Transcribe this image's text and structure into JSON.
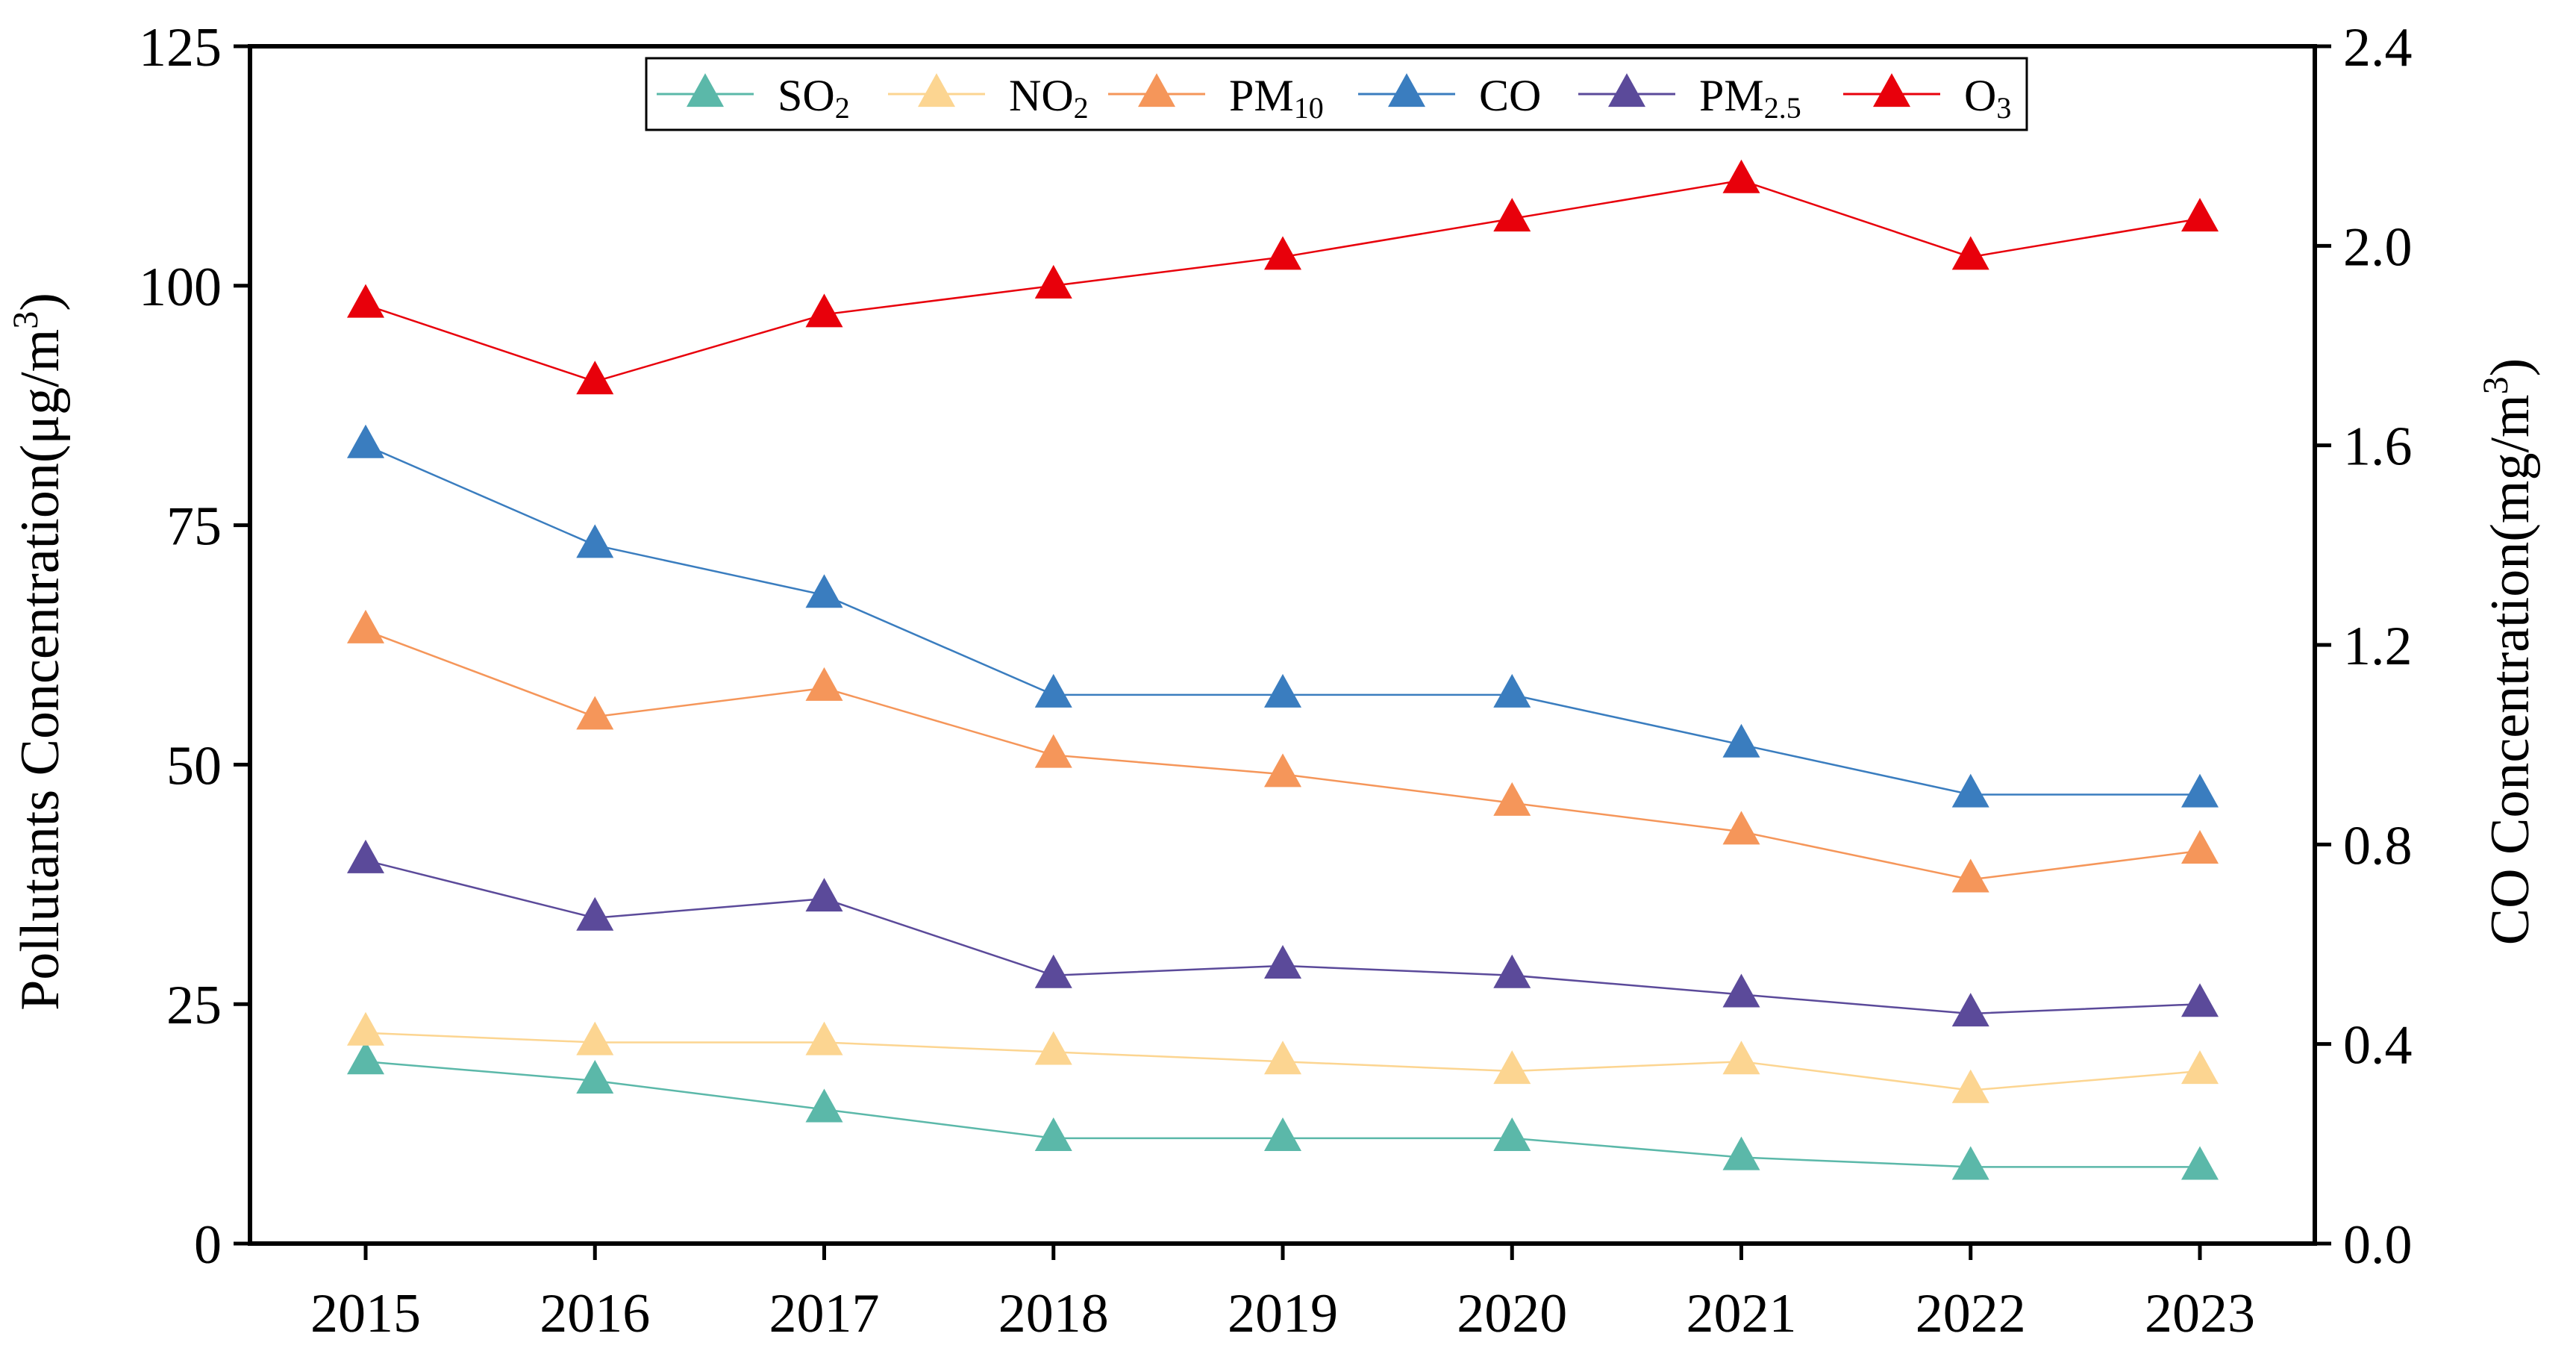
{
  "chart_data": {
    "type": "line",
    "categories": [
      "2015",
      "2016",
      "2017",
      "2018",
      "2019",
      "2020",
      "2021",
      "2022",
      "2023"
    ],
    "y_left": {
      "label_prefix": "Pollutants Concentration(μg/m",
      "label_sup": "3",
      "label_suffix": ")",
      "range": [
        0,
        125
      ],
      "ticks": [
        "0",
        "25",
        "50",
        "75",
        "100",
        "125"
      ]
    },
    "y_right": {
      "label_prefix": "CO Concentration(mg/m",
      "label_sup": "3",
      "label_suffix": ")",
      "range": [
        0.0,
        2.4
      ],
      "ticks": [
        "0.0",
        "0.4",
        "0.8",
        "1.2",
        "1.6",
        "2.0",
        "2.4"
      ]
    },
    "series": [
      {
        "key": "so2",
        "name": "SO",
        "sub": "2",
        "axis": "left",
        "color": "#5BB8A9",
        "values": [
          19,
          17,
          14,
          11,
          11,
          11,
          9,
          8,
          8
        ]
      },
      {
        "key": "no2",
        "name": "NO",
        "sub": "2",
        "axis": "left",
        "color": "#FCD591",
        "values": [
          22,
          21,
          21,
          20,
          19,
          18,
          19,
          16,
          18
        ]
      },
      {
        "key": "pm10",
        "name": "PM",
        "sub": "10",
        "axis": "left",
        "color": "#F5965A",
        "values": [
          64,
          55,
          58,
          51,
          49,
          46,
          43,
          38,
          41
        ]
      },
      {
        "key": "co",
        "name": "CO",
        "sub": "",
        "axis": "right",
        "color": "#3A7DBF",
        "values": [
          1.6,
          1.4,
          1.3,
          1.1,
          1.1,
          1.1,
          1.0,
          0.9,
          0.9
        ]
      },
      {
        "key": "pm25",
        "name": "PM",
        "sub": "2.5",
        "axis": "left",
        "color": "#5B4A9A",
        "values": [
          40,
          34,
          36,
          28,
          29,
          28,
          26,
          24,
          25
        ]
      },
      {
        "key": "o3",
        "name": "O",
        "sub": "3",
        "axis": "left",
        "color": "#E8000B",
        "values": [
          98,
          90,
          97,
          100,
          103,
          107,
          111,
          103,
          107
        ]
      }
    ],
    "legend_position": "top-center"
  }
}
